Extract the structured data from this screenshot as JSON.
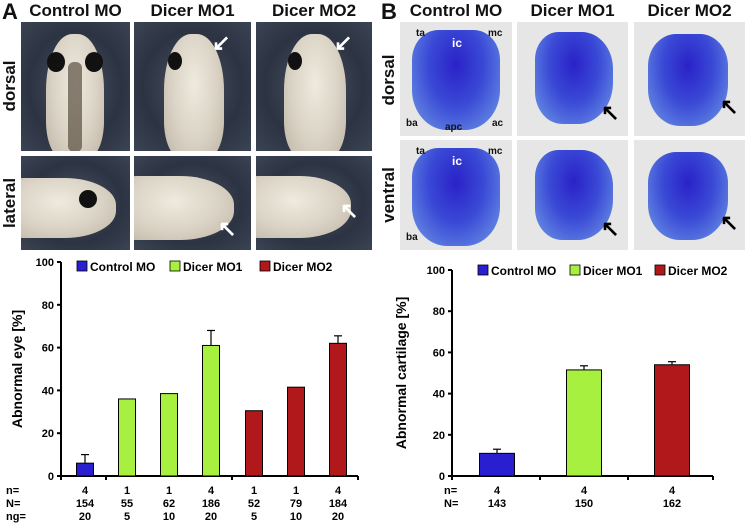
{
  "panels": {
    "A": {
      "label": "A",
      "columns": [
        "Control MO",
        "Dicer MO1",
        "Dicer MO2"
      ],
      "rows": [
        "dorsal",
        "lateral"
      ]
    },
    "B": {
      "label": "B",
      "columns": [
        "Control MO",
        "Dicer MO1",
        "Dicer MO2"
      ],
      "rows": [
        "dorsal",
        "ventral"
      ],
      "annotations": {
        "dorsal": [
          "ta",
          "ic",
          "mc",
          "ba",
          "apc",
          "ac"
        ],
        "ventral": [
          "ta",
          "ic",
          "mc",
          "ba"
        ]
      }
    }
  },
  "chart_data": [
    {
      "type": "bar",
      "ylabel": "Abnormal eye [%]",
      "xlabel": "",
      "ylim": [
        0,
        100
      ],
      "yticks": [
        0,
        20,
        40,
        60,
        80,
        100
      ],
      "grid": false,
      "legend_position": "top",
      "legend": [
        {
          "name": "Control MO",
          "color": "#2a1fd0"
        },
        {
          "name": "Dicer MO1",
          "color": "#a8f040"
        },
        {
          "name": "Dicer MO2",
          "color": "#b0181c"
        }
      ],
      "values": [
        6,
        36,
        38.5,
        61,
        30.5,
        41.5,
        62
      ],
      "error_upper": [
        10,
        null,
        null,
        68,
        null,
        null,
        65.5
      ],
      "groups": [
        "Control MO",
        "Dicer MO1",
        "Dicer MO1",
        "Dicer MO1",
        "Dicer MO2",
        "Dicer MO2",
        "Dicer MO2"
      ],
      "table": {
        "row_labels": [
          "n=",
          "N=",
          "ng="
        ],
        "n": [
          "4",
          "1",
          "1",
          "4",
          "1",
          "1",
          "4"
        ],
        "N": [
          "154",
          "55",
          "62",
          "186",
          "52",
          "79",
          "184"
        ],
        "ng": [
          "20",
          "5",
          "10",
          "20",
          "5",
          "10",
          "20"
        ]
      }
    },
    {
      "type": "bar",
      "ylabel": "Abnormal cartilage [%]",
      "xlabel": "",
      "ylim": [
        0,
        100
      ],
      "yticks": [
        0,
        20,
        40,
        60,
        80,
        100
      ],
      "grid": false,
      "legend_position": "top",
      "legend": [
        {
          "name": "Control MO",
          "color": "#2a1fd0"
        },
        {
          "name": "Dicer MO1",
          "color": "#a8f040"
        },
        {
          "name": "Dicer MO2",
          "color": "#b0181c"
        }
      ],
      "values": [
        11,
        51.5,
        54
      ],
      "error_upper": [
        13,
        53.5,
        55.5
      ],
      "groups": [
        "Control MO",
        "Dicer MO1",
        "Dicer MO2"
      ],
      "table": {
        "row_labels": [
          "n=",
          "N="
        ],
        "n": [
          "4",
          "4",
          "4"
        ],
        "N": [
          "143",
          "150",
          "162"
        ]
      }
    }
  ]
}
